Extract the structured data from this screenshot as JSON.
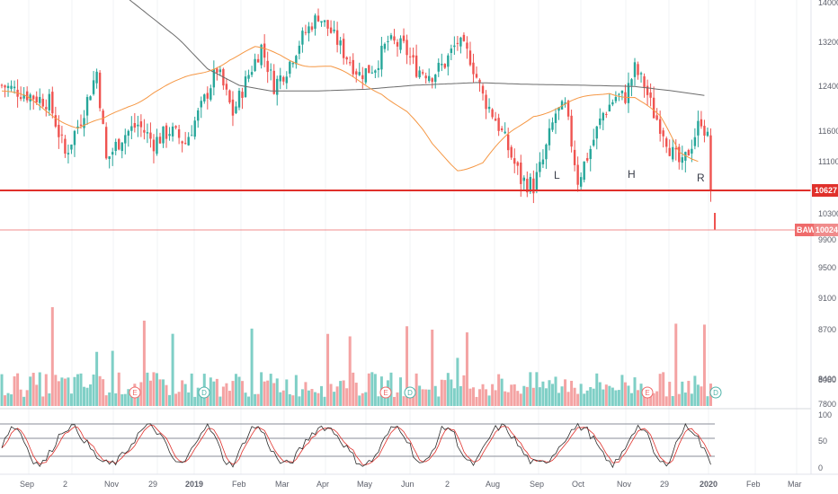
{
  "chart_data": {
    "type": "candlestick",
    "title": "",
    "price_axis": {
      "ticks": [
        "14000",
        "13200",
        "12400",
        "11600",
        "11100",
        "10300",
        "9900",
        "9500",
        "9100",
        "8700",
        "8400",
        "8080",
        "7800"
      ]
    },
    "stoch_axis": {
      "ticks": [
        "100",
        "50",
        "0"
      ]
    },
    "time_axis": {
      "labels": [
        "Sep",
        "2",
        "Nov",
        "29",
        "2019",
        "Feb",
        "Mar",
        "Apr",
        "May",
        "Jun",
        "2",
        "Aug",
        "Sep",
        "Oct",
        "Nov",
        "29",
        "2020",
        "Feb",
        "Mar"
      ]
    },
    "horizontal_lines": [
      {
        "label": "10627",
        "price": 10627,
        "color": "#e0302b"
      },
      {
        "label": "10024",
        "price": 10024,
        "color": "#f08c8c",
        "tag": "BAW"
      }
    ],
    "pattern_labels": [
      "L",
      "H",
      "R"
    ],
    "event_markers": [
      {
        "letter": "E",
        "color": "#ef6b6b"
      },
      {
        "letter": "D",
        "color": "#4fb3a9"
      },
      {
        "letter": "E",
        "color": "#ef6b6b"
      },
      {
        "letter": "D",
        "color": "#4fb3a9"
      },
      {
        "letter": "E",
        "color": "#ef6b6b"
      },
      {
        "letter": "D",
        "color": "#4fb3a9"
      }
    ],
    "series": [
      {
        "name": "",
        "kind": "sma-fast",
        "color": "#f59744",
        "anchors": [
          [
            0,
            12300
          ],
          [
            8,
            12150
          ],
          [
            16,
            11900
          ],
          [
            24,
            11650
          ],
          [
            32,
            11750
          ],
          [
            40,
            12050
          ],
          [
            48,
            12300
          ],
          [
            56,
            12450
          ],
          [
            64,
            12650
          ],
          [
            72,
            12900
          ],
          [
            80,
            13050
          ],
          [
            88,
            12950
          ],
          [
            96,
            12800
          ],
          [
            104,
            12700
          ],
          [
            112,
            12500
          ],
          [
            120,
            12300
          ],
          [
            128,
            11900
          ],
          [
            136,
            11350
          ],
          [
            144,
            11000
          ],
          [
            152,
            11050
          ],
          [
            160,
            11500
          ],
          [
            168,
            11900
          ],
          [
            176,
            12000
          ],
          [
            184,
            12150
          ],
          [
            192,
            12300
          ],
          [
            200,
            12200
          ],
          [
            208,
            11800
          ],
          [
            214,
            11250
          ],
          [
            220,
            11150
          ]
        ]
      },
      {
        "name": "",
        "kind": "sma-slow",
        "color": "#6c6c6c",
        "anchors": [
          [
            0,
            14900
          ],
          [
            20,
            14700
          ],
          [
            40,
            14100
          ],
          [
            55,
            13300
          ],
          [
            65,
            12700
          ],
          [
            75,
            12400
          ],
          [
            85,
            12300
          ],
          [
            100,
            12300
          ],
          [
            115,
            12330
          ],
          [
            130,
            12400
          ],
          [
            150,
            12450
          ],
          [
            165,
            12420
          ],
          [
            185,
            12400
          ],
          [
            200,
            12380
          ],
          [
            212,
            12300
          ],
          [
            222,
            12220
          ]
        ]
      },
      {
        "name": "",
        "kind": "close",
        "anchors": [
          [
            0,
            12400
          ],
          [
            10,
            12200
          ],
          [
            15,
            12100
          ],
          [
            20,
            11200
          ],
          [
            25,
            11800
          ],
          [
            30,
            12650
          ],
          [
            33,
            11100
          ],
          [
            38,
            11500
          ],
          [
            43,
            11700
          ],
          [
            48,
            11400
          ],
          [
            53,
            11600
          ],
          [
            58,
            11400
          ],
          [
            63,
            12000
          ],
          [
            68,
            12700
          ],
          [
            73,
            11900
          ],
          [
            78,
            12600
          ],
          [
            82,
            13100
          ],
          [
            86,
            12400
          ],
          [
            90,
            12700
          ],
          [
            95,
            13300
          ],
          [
            100,
            13750
          ],
          [
            104,
            13400
          ],
          [
            108,
            13000
          ],
          [
            113,
            12600
          ],
          [
            118,
            12750
          ],
          [
            122,
            13200
          ],
          [
            127,
            13100
          ],
          [
            131,
            12700
          ],
          [
            136,
            12600
          ],
          [
            140,
            12800
          ],
          [
            144,
            13200
          ],
          [
            148,
            12900
          ],
          [
            152,
            12200
          ],
          [
            156,
            11800
          ],
          [
            160,
            11300
          ],
          [
            164,
            10800
          ],
          [
            168,
            10700
          ],
          [
            171,
            11100
          ],
          [
            175,
            11900
          ],
          [
            178,
            12000
          ],
          [
            182,
            10800
          ],
          [
            186,
            11300
          ],
          [
            190,
            11900
          ],
          [
            194,
            12200
          ],
          [
            197,
            12200
          ],
          [
            200,
            12700
          ],
          [
            203,
            12400
          ],
          [
            206,
            11900
          ],
          [
            209,
            11600
          ],
          [
            212,
            11200
          ],
          [
            215,
            11000
          ],
          [
            218,
            11400
          ],
          [
            221,
            11800
          ],
          [
            223,
            11450
          ],
          [
            224,
            10650
          ]
        ]
      }
    ],
    "volume": {
      "colors": {
        "up": "#7fcfc6",
        "down": "#f4a3a3"
      }
    },
    "stochastic": {
      "k_color": "#2d2d2d",
      "d_color": "#e0302b",
      "levels": [
        20,
        50,
        80
      ]
    },
    "colors": {
      "up": "#26a69a",
      "down": "#ef5350"
    }
  }
}
